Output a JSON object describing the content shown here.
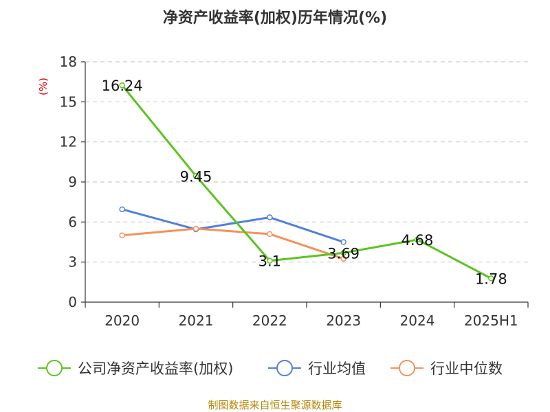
{
  "chart_data": {
    "type": "line",
    "title": "净资产收益率(加权)历年情况(%)",
    "ylabel": "(%)",
    "categories": [
      "2020",
      "2021",
      "2022",
      "2023",
      "2024",
      "2025H1"
    ],
    "ylim": [
      0,
      18
    ],
    "yticks": [
      0,
      3,
      6,
      9,
      12,
      15,
      18
    ],
    "grid": true,
    "legend_position": "bottom",
    "series": [
      {
        "name": "公司净资产收益率(加权)",
        "color": "#5cc41f",
        "values": [
          16.24,
          9.45,
          3.1,
          3.69,
          4.68,
          1.78
        ],
        "labels": [
          "16.24",
          "9.45",
          "3.1",
          "3.69",
          "4.68",
          "1.78"
        ]
      },
      {
        "name": "行业均值",
        "color": "#4f7fdc",
        "values": [
          6.95,
          5.45,
          6.35,
          4.5,
          null,
          null
        ]
      },
      {
        "name": "行业中位数",
        "color": "#f5915a",
        "values": [
          5.0,
          5.5,
          5.1,
          3.25,
          null,
          null
        ]
      }
    ]
  },
  "source": "制图数据来自恒生聚源数据库",
  "colors": {
    "title": "#333333",
    "axis": "#333333",
    "grid": "#cccccc",
    "ylabel": "#dd0000",
    "source": "#b8860b"
  }
}
